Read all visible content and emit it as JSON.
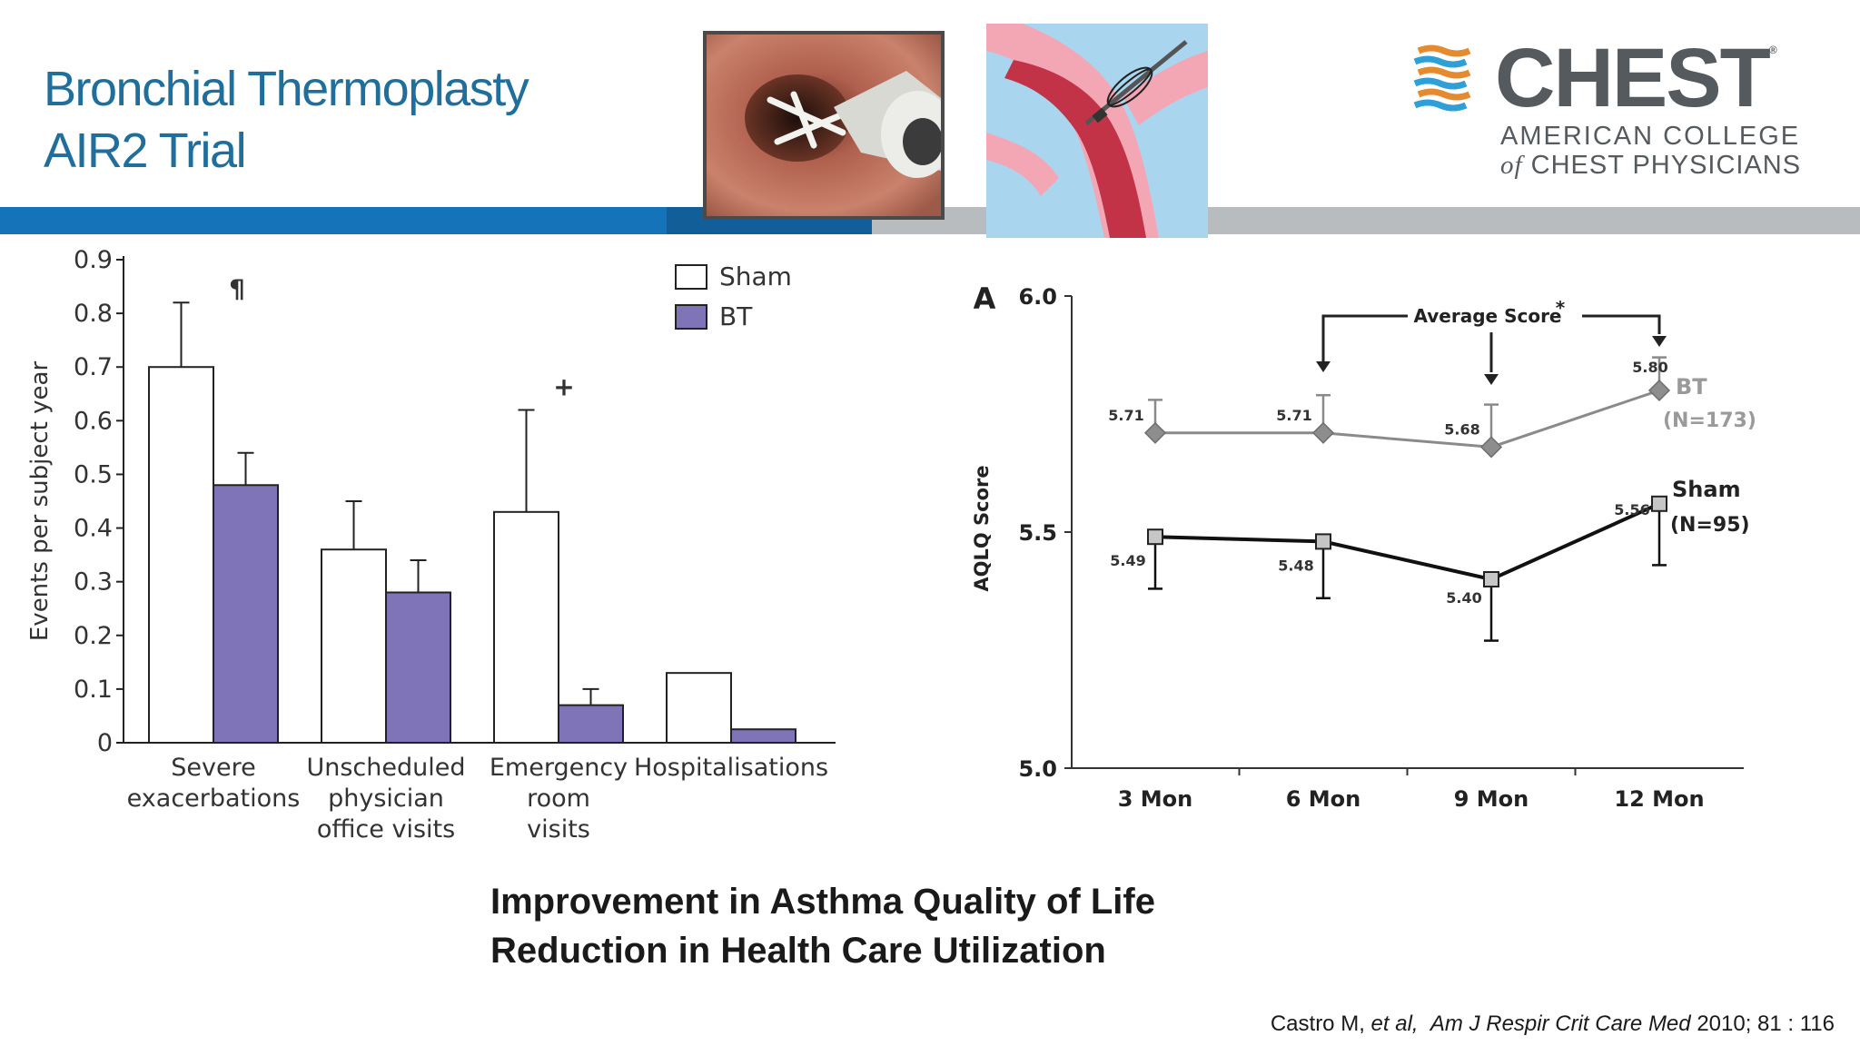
{
  "slide": {
    "title_lines": [
      "Bronchial Thermoplasty",
      "AIR2 Trial"
    ],
    "conclusions": [
      "Improvement in Asthma Quality of Life",
      "Reduction in Health Care Utilization"
    ],
    "citation": {
      "authors": "Castro  M, ",
      "etal": "et al,",
      "journal": "Am J Respir Crit Care Med",
      "details": "2010;  81 : 116"
    },
    "colors": {
      "title": "#1f6e9c",
      "band_blue": "#1573b9",
      "band_dark_blue": "#125e98",
      "band_grey": "#b9bcbf"
    }
  },
  "logo": {
    "word": "CHEST",
    "registered": "®",
    "line1": "AMERICAN COLLEGE",
    "line2_prefix": "of",
    "line2_rest": " CHEST PHYSICIANS",
    "stripe_colors": [
      "#e48a2f",
      "#2f9fd8",
      "#e48a2f",
      "#2f9fd8",
      "#e48a2f",
      "#2f9fd8"
    ]
  },
  "images": {
    "bronchoscopy_photo": "bronchoscopy-photo",
    "airway_illustration": "airway-catheter-illustration"
  },
  "chart_data": [
    {
      "type": "bar",
      "ylabel": "Events per subject year",
      "ylim": [
        0,
        0.9
      ],
      "yticks": [
        "0",
        "0.1",
        "0.2",
        "0.3",
        "0.4",
        "0.5",
        "0.6",
        "0.7",
        "0.8",
        "0.9"
      ],
      "categories": [
        [
          "Severe",
          "exacerbations"
        ],
        [
          "Unscheduled",
          "physician",
          "office visits"
        ],
        [
          "Emergency",
          "room",
          "visits"
        ],
        [
          "Hospitalisations"
        ]
      ],
      "series": [
        {
          "name": "Sham",
          "color": "#ffffff",
          "values": [
            0.7,
            0.36,
            0.43,
            0.13
          ],
          "error_upper": [
            0.82,
            0.45,
            0.62,
            null
          ]
        },
        {
          "name": "BT",
          "color": "#8074b8",
          "values": [
            0.48,
            0.28,
            0.07,
            0.025
          ],
          "error_upper": [
            0.54,
            0.34,
            0.1,
            null
          ]
        }
      ],
      "annotations": [
        {
          "category": 0,
          "text": "¶"
        },
        {
          "category": 2,
          "text": "+"
        }
      ],
      "legend_position": "top-right"
    },
    {
      "type": "line",
      "panel": "A",
      "ylabel": "AQLQ Score",
      "ylim": [
        5.0,
        6.0
      ],
      "yticks": [
        "5.0",
        "5.5",
        "6.0"
      ],
      "x": [
        "3 Mon",
        "6 Mon",
        "9 Mon",
        "12 Mon"
      ],
      "series": [
        {
          "name": "BT",
          "n_label": "(N=173)",
          "color": "#8a8a8a",
          "marker": "diamond",
          "values": [
            5.71,
            5.71,
            5.68,
            5.8
          ],
          "labels": [
            "5.71",
            "5.71",
            "5.68",
            "5.80"
          ],
          "error_upper": [
            5.78,
            5.79,
            5.77,
            5.87
          ]
        },
        {
          "name": "Sham",
          "n_label": "(N=95)",
          "color": "#111111",
          "marker": "square",
          "values": [
            5.49,
            5.48,
            5.4,
            5.56
          ],
          "labels": [
            "5.49",
            "5.48",
            "5.40",
            "5.56"
          ],
          "error_lower": [
            5.38,
            5.36,
            5.27,
            5.43
          ]
        }
      ],
      "annotation": {
        "text": "Average Score",
        "mark": "*",
        "arrows_at": [
          "6 Mon",
          "9 Mon",
          "12 Mon"
        ]
      }
    }
  ]
}
